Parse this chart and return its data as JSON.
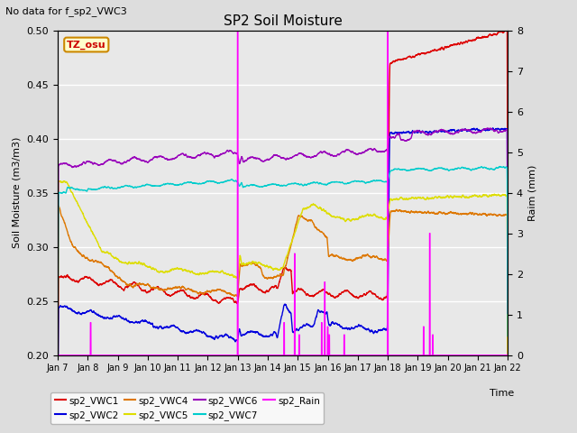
{
  "title": "SP2 Soil Moisture",
  "subtitle": "No data for f_sp2_VWC3",
  "ylabel_left": "Soil Moisture (m3/m3)",
  "ylabel_right": "Raim (mm)",
  "ylim_left": [
    0.2,
    0.5
  ],
  "ylim_right": [
    0.0,
    8.0
  ],
  "yticks_left": [
    0.2,
    0.25,
    0.3,
    0.35,
    0.4,
    0.45,
    0.5
  ],
  "yticks_right": [
    0.0,
    1.0,
    2.0,
    3.0,
    4.0,
    5.0,
    6.0,
    7.0,
    8.0
  ],
  "xtick_labels": [
    "Jan 7",
    "Jan 8",
    "Jan 9",
    "Jan 10",
    "Jan 11",
    "Jan 12",
    "Jan 13",
    "Jan 14",
    "Jan 15",
    "Jan 16",
    "Jan 17",
    "Jan 18",
    "Jan 19",
    "Jan 20",
    "Jan 21",
    "Jan 22"
  ],
  "fig_bg": "#dddddd",
  "plot_bg": "#e8e8e8",
  "grid_color": "#ffffff",
  "tz_label": "TZ_osu",
  "colors": {
    "vwc1": "#dd0000",
    "vwc2": "#0000dd",
    "vwc4": "#dd7700",
    "vwc5": "#dddd00",
    "vwc6": "#9900bb",
    "vwc7": "#00cccc",
    "rain": "#ff00ff"
  }
}
